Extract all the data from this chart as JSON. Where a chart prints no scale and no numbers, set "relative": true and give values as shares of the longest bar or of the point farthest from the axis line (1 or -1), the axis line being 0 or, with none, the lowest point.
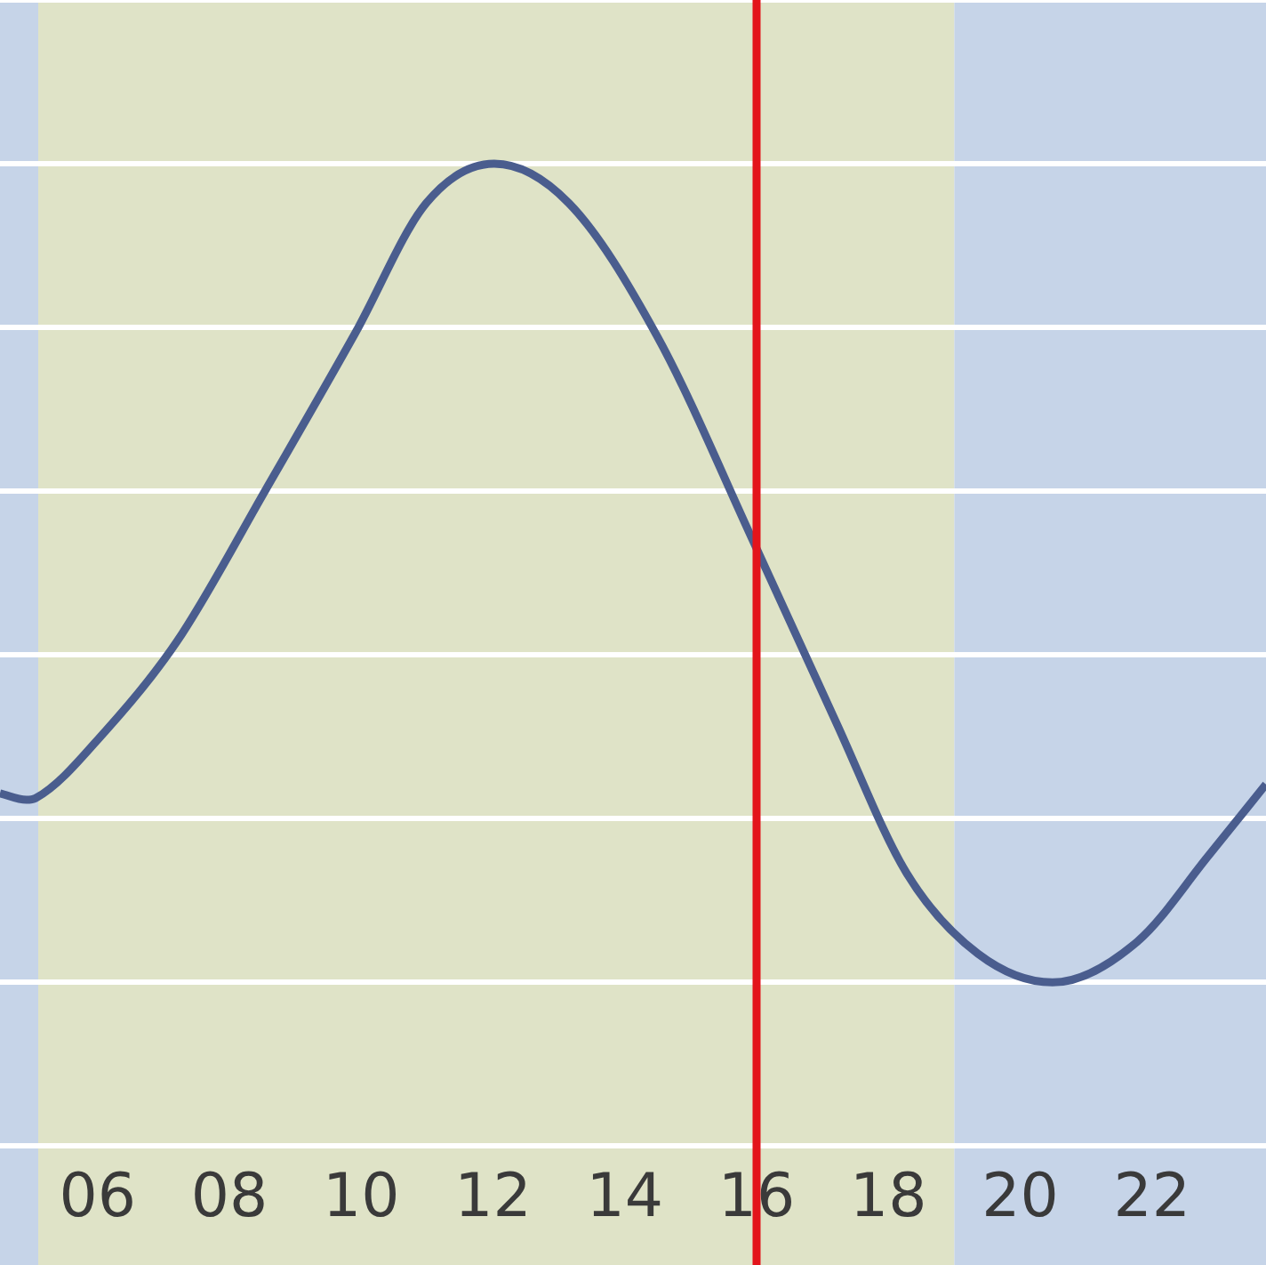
{
  "chart_data": {
    "type": "line",
    "relative": true,
    "x": [
      4.52,
      4.92,
      5.06,
      6.13,
      7.21,
      8.56,
      9.91,
      10.99,
      12.02,
      13.15,
      14.5,
      15.96,
      17.2,
      18.28,
      19.36,
      20.49,
      21.78,
      22.86,
      23.73
    ],
    "series": [
      {
        "color": "#4a5d8e",
        "values": [
          0.231,
          0.223,
          0.225,
          0.308,
          0.417,
          0.603,
          0.793,
          0.952,
          1,
          0.952,
          0.788,
          0.537,
          0.319,
          0.133,
          0.035,
          0,
          0.05,
          0.155,
          0.242
        ]
      }
    ],
    "xlim": [
      4.52,
      23.73
    ],
    "xticks": [
      {
        "value": 6,
        "label": "06"
      },
      {
        "value": 8,
        "label": "08"
      },
      {
        "value": 10,
        "label": "10"
      },
      {
        "value": 12,
        "label": "12"
      },
      {
        "value": 14,
        "label": "14"
      },
      {
        "value": 16,
        "label": "16"
      },
      {
        "value": 18,
        "label": "18"
      },
      {
        "value": 20,
        "label": "20"
      },
      {
        "value": 22,
        "label": "22"
      }
    ],
    "bands": [
      {
        "axis": "x",
        "from": 4.52,
        "to": 5.1,
        "color": "#c6d4e8"
      },
      {
        "axis": "x",
        "from": 5.1,
        "to": 19,
        "color": "#dfe3c7"
      },
      {
        "axis": "x",
        "from": 19,
        "to": 23.73,
        "color": "#c6d4e8"
      }
    ],
    "ref_lines": [
      {
        "axis": "x",
        "value": 16,
        "color": "#e3141b",
        "line_style": "solid"
      }
    ],
    "grid": "y",
    "legend": false,
    "marker": "none",
    "line_style": "solid"
  }
}
